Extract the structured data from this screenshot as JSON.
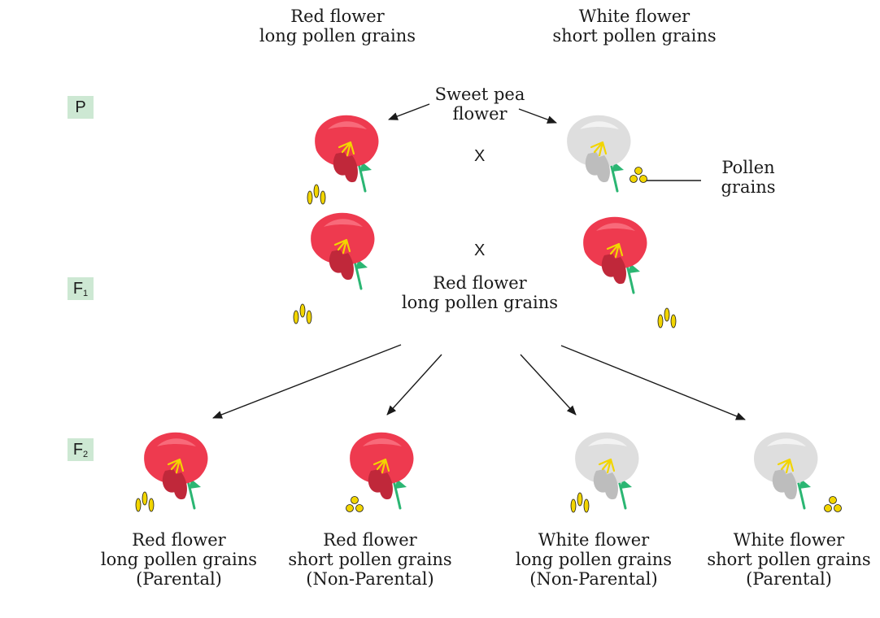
{
  "parents": {
    "left": {
      "line1": "Red flower",
      "line2": "long pollen grains"
    },
    "right": {
      "line1": "White flower",
      "line2": "short pollen grains"
    }
  },
  "generations": {
    "p": {
      "letter": "P",
      "sub": ""
    },
    "f1": {
      "letter": "F",
      "sub": "1"
    },
    "f2": {
      "letter": "F",
      "sub": "2"
    }
  },
  "annotations": {
    "sweet_pea_line1": "Sweet pea",
    "sweet_pea_line2": "flower",
    "pollen_line1": "Pollen",
    "pollen_line2": "grains",
    "cross_symbol": "X"
  },
  "f1": {
    "line1": "Red flower",
    "line2": "long pollen grains"
  },
  "f2": [
    {
      "line1": "Red flower",
      "line2": "long pollen grains",
      "line3": "(Parental)"
    },
    {
      "line1": "Red flower",
      "line2": "short pollen grains",
      "line3": "(Non-Parental)"
    },
    {
      "line1": "White flower",
      "line2": "long pollen grains",
      "line3": "(Non-Parental)"
    },
    {
      "line1": "White flower",
      "line2": "short pollen grains",
      "line3": "(Parental)"
    }
  ],
  "colors": {
    "red_petal": "#ee3a4f",
    "red_petal_light": "#f8707e",
    "red_petal_dark": "#c0283a",
    "white_petal": "#dedede",
    "white_petal_light": "#f4f4f4",
    "white_petal_dark": "#bdbdbd",
    "yellow": "#f2d500",
    "stem": "#2bb673",
    "arrow": "#1a1a1a",
    "generation_badge": "#cde8d3"
  }
}
